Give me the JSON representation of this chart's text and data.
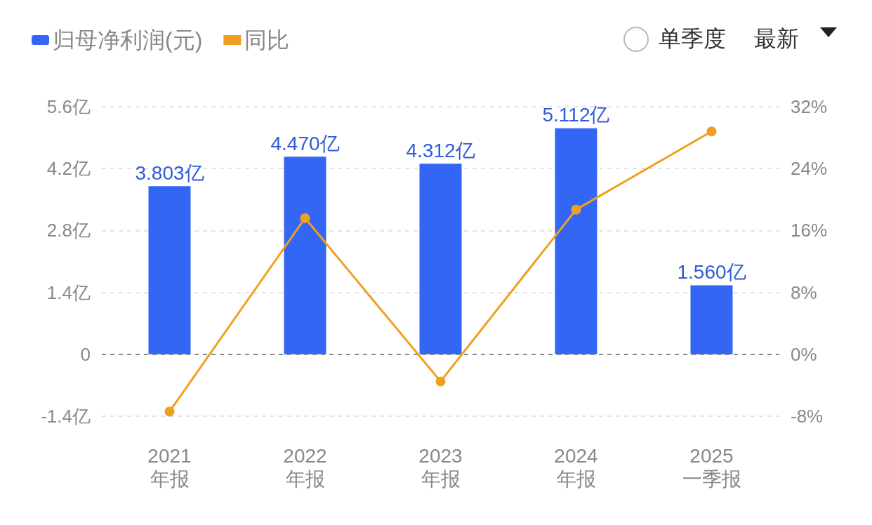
{
  "chart_data": {
    "type": "bar",
    "categories": [
      "2021\n年报",
      "2022\n年报",
      "2023\n年报",
      "2024\n年报",
      "2025\n一季报"
    ],
    "series": [
      {
        "name": "归母净利润(元)",
        "color": "#3366f5",
        "values": [
          3.803,
          4.47,
          4.312,
          5.112,
          1.56
        ],
        "value_labels": [
          "3.803亿",
          "4.470亿",
          "4.312亿",
          "5.112亿",
          "1.560亿"
        ]
      },
      {
        "name": "同比",
        "type": "line",
        "axis": "y2",
        "color": "#f0a020",
        "values": [
          -7.4,
          17.6,
          -3.5,
          18.7,
          28.8
        ]
      }
    ],
    "ylim": [
      -1.4,
      5.6
    ],
    "yticks": [
      {
        "value": -1.4,
        "label": "-1.4亿"
      },
      {
        "value": 0,
        "label": "0"
      },
      {
        "value": 1.4,
        "label": "1.4亿"
      },
      {
        "value": 2.8,
        "label": "2.8亿"
      },
      {
        "value": 4.2,
        "label": "4.2亿"
      },
      {
        "value": 5.6,
        "label": "5.6亿"
      }
    ],
    "y2lim": [
      -8,
      32
    ],
    "y2ticks": [
      {
        "value": -8,
        "label": "-8%"
      },
      {
        "value": 0,
        "label": "0%"
      },
      {
        "value": 8,
        "label": "8%"
      },
      {
        "value": 16,
        "label": "16%"
      },
      {
        "value": 24,
        "label": "24%"
      },
      {
        "value": 32,
        "label": "32%"
      }
    ],
    "ref_lines": [
      {
        "axis": "y",
        "value": 0,
        "color": "#888888",
        "line_style": "dashed"
      }
    ],
    "grid": "y",
    "legend": "top left",
    "marker": "circle",
    "annotations": [
      "单季度",
      "最新"
    ]
  }
}
